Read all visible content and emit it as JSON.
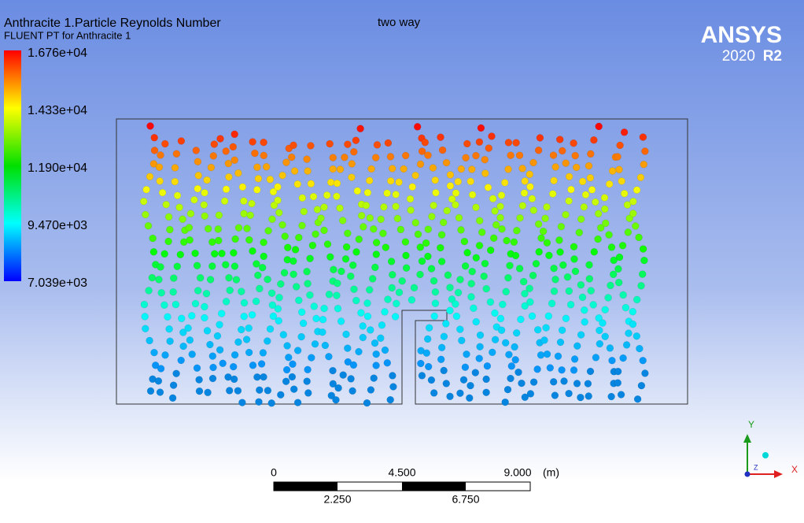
{
  "header": {
    "title": "Anthracite 1.Particle Reynolds Number",
    "subtitle": "FLUENT PT for Anthracite 1",
    "case": "two way"
  },
  "logo": {
    "brand": "ANSYS",
    "year": "2020",
    "release": "R2"
  },
  "legend": {
    "labels": [
      "1.676e+04",
      "1.433e+04",
      "1.190e+04",
      "9.470e+03",
      "7.039e+03"
    ]
  },
  "scale_bar": {
    "top_labels": [
      "0",
      "4.500",
      "9.000"
    ],
    "unit": "(m)",
    "bottom_labels": [
      "2.250",
      "6.750"
    ]
  },
  "axes": {
    "y": "Y",
    "x": "X",
    "z": "Z"
  }
}
